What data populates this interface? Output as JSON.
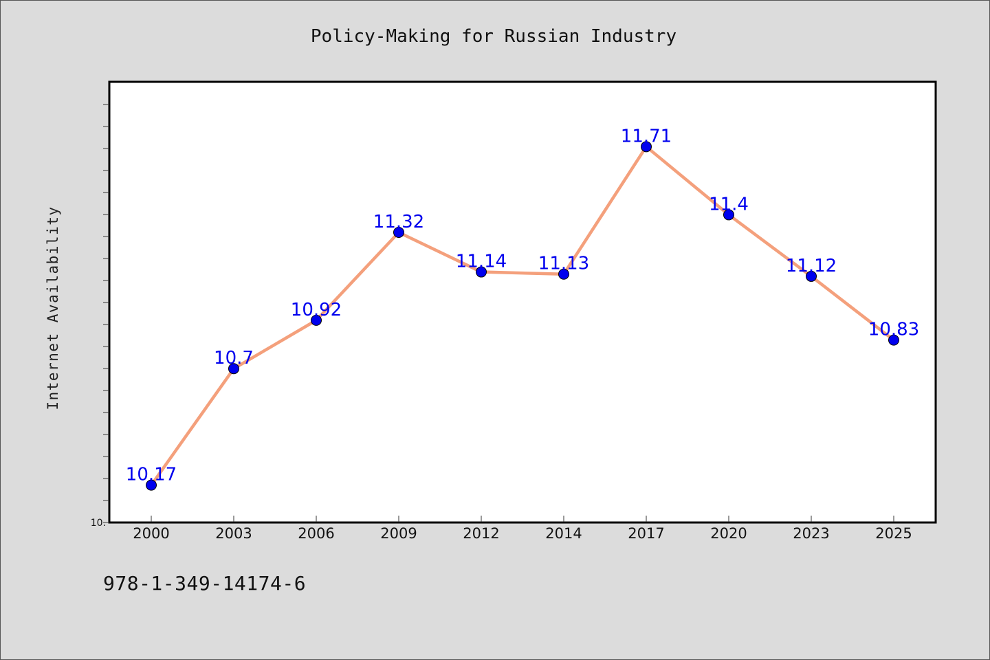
{
  "chart_data": {
    "type": "line",
    "title": "Policy-Making for Russian Industry",
    "xlabel": "",
    "ylabel": "Internet Availability",
    "categories": [
      "2000",
      "2003",
      "2006",
      "2009",
      "2012",
      "2014",
      "2017",
      "2020",
      "2023",
      "2025"
    ],
    "series": [
      {
        "values": [
          10.17,
          10.7,
          10.92,
          11.32,
          11.14,
          11.13,
          11.71,
          11.4,
          11.12,
          10.83
        ],
        "data_labels": [
          "10.17",
          "10.7",
          "10.92",
          "11.32",
          "11.14",
          "11.13",
          "11.71",
          "11.4",
          "11.12",
          "10.83"
        ],
        "line_color": "#f4a07c",
        "marker_color": "#0000ee"
      }
    ],
    "y_tick_label": "10.",
    "ylim": [
      10.0,
      12.0
    ],
    "grid": false,
    "legend": "none"
  },
  "footer": {
    "isbn": "978-1-349-14174-6"
  },
  "colors": {
    "background": "#dcdcdc",
    "plot_background": "#ffffff",
    "label_color": "#0000ee"
  }
}
